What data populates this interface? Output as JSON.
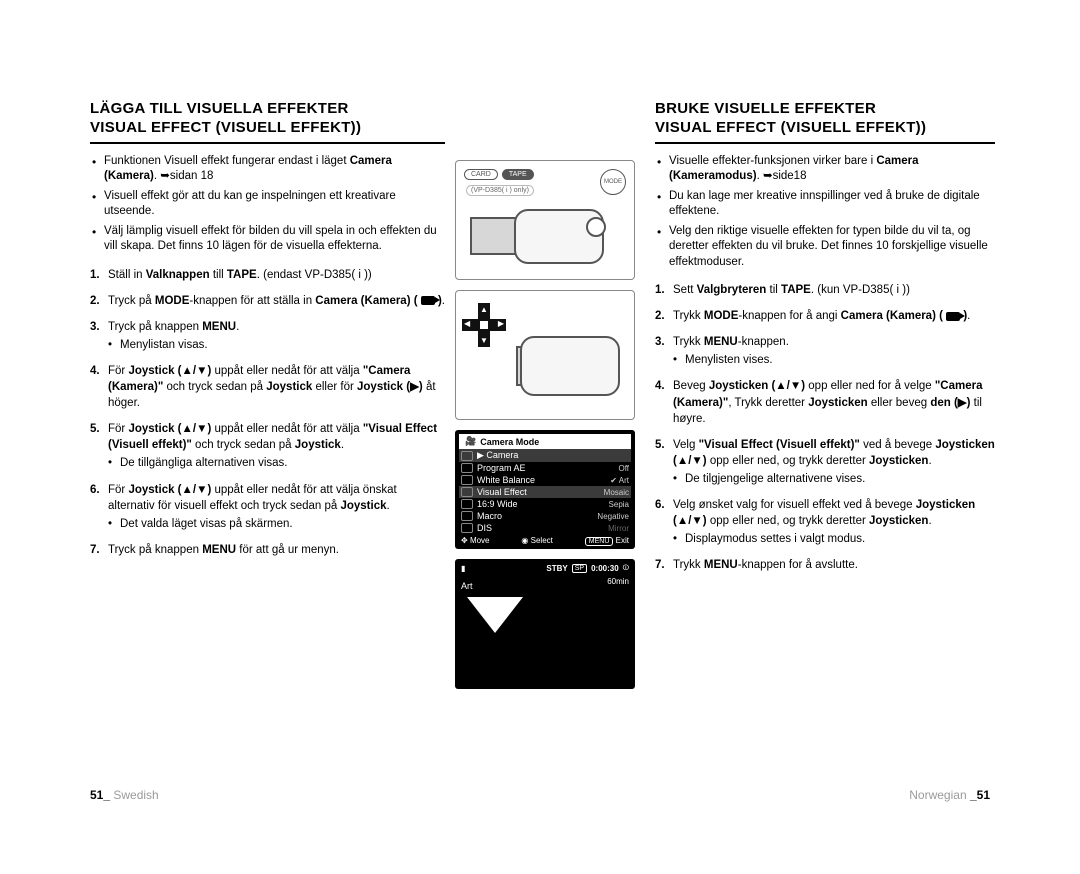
{
  "left": {
    "title_line1": "LÄGGA TILL VISUELLA EFFEKTER",
    "title_line2": "VISUAL EFFECT (VISUELL EFFEKT))",
    "intro": [
      "Funktionen Visuell effekt fungerar endast i läget <b>Camera (Kamera)</b>. ➥sidan 18",
      "Visuell effekt gör att du kan ge inspelningen ett kreativare utseende.",
      "Välj lämplig visuell effekt för bilden du vill spela in och effekten du vill skapa. Det finns 10 lägen för de visuella effekterna."
    ],
    "steps": [
      "Ställ in <b>Valknappen</b> till <b>TAPE</b>. (endast VP-D385( i ))",
      "Tryck på <b>MODE</b>-knappen för att ställa in <b>Camera (Kamera) ( <cam> )</b>.",
      "Tryck på knappen <b>MENU</b>.|Menylistan visas.",
      "För <b>Joystick (▲/▼)</b> uppåt eller nedåt för att välja <b>\"Camera (Kamera)\"</b> och tryck sedan på <b>Joystick</b> eller för <b>Joystick (▶)</b> åt höger.",
      "För <b>Joystick (▲/▼)</b> uppåt eller nedåt för att välja <b>\"Visual Effect (Visuell effekt)\"</b> och tryck sedan på <b>Joystick</b>.|De tillgängliga alternativen visas.",
      "För <b>Joystick (▲/▼)</b> uppåt eller nedåt för att välja önskat alternativ för visuell effekt och tryck sedan på <b>Joystick</b>.|Det valda läget visas på skärmen.",
      "Tryck på knappen <b>MENU</b> för att gå ur menyn."
    ]
  },
  "right": {
    "title_line1": "BRUKE VISUELLE EFFEKTER",
    "title_line2": "VISUAL EFFECT (VISUELL EFFEKT))",
    "intro": [
      "Visuelle effekter-funksjonen virker bare i <b>Camera (Kameramodus)</b>. ➥side18",
      "Du kan lage mer kreative innspillinger ved å bruke de digitale effektene.",
      "Velg den riktige visuelle effekten for typen bilde du vil ta, og deretter effekten du vil bruke. Det finnes 10 forskjellige visuelle effektmoduser."
    ],
    "steps": [
      "Sett <b>Valgbryteren</b> til <b>TAPE</b>. (kun VP-D385( i ))",
      "Trykk <b>MODE</b>-knappen for å angi <b>Camera (Kamera) ( <cam> )</b>.",
      "Trykk <b>MENU</b>-knappen.|Menylisten vises.",
      "Beveg <b>Joysticken (▲/▼)</b> opp eller ned for å velge <b>\"Camera (Kamera)\"</b>, Trykk deretter <b>Joysticken</b> eller beveg <b>den (▶)</b> til høyre.",
      "Velg <b>\"Visual Effect (Visuell effekt)\"</b> ved å bevege <b>Joysticken (▲/▼)</b> opp eller ned, og trykk deretter <b>Joysticken</b>.|De tilgjengelige alternativene vises.",
      "Velg ønsket valg for visuell effekt ved å bevege <b>Joysticken (▲/▼)</b> opp eller ned, og trykk deretter <b>Joysticken</b>.|Displaymodus settes i valgt modus.",
      "Trykk <b>MENU</b>-knappen for å avslutte."
    ]
  },
  "center": {
    "pill_card": "CARD",
    "pill_tape": "TAPE",
    "mode": "MODE",
    "subnote": "(VP-D385( i ) only)",
    "menu_header": "Camera Mode",
    "menu_rows": [
      {
        "label": "Camera",
        "value": "",
        "sel": true,
        "camera": true
      },
      {
        "label": "Program AE",
        "value": "Off"
      },
      {
        "label": "White Balance",
        "value": "Art",
        "chk": true
      },
      {
        "label": "Visual Effect",
        "value": "Mosaic",
        "sel": true
      },
      {
        "label": "16:9 Wide",
        "value": "Sepia"
      },
      {
        "label": "Macro",
        "value": "Negative"
      },
      {
        "label": "DIS",
        "value": "Mirror",
        "dim": true
      }
    ],
    "foot_move": "Move",
    "foot_select": "Select",
    "foot_menu": "MENU",
    "foot_exit": "Exit",
    "art_stby": "STBY",
    "art_sp": "SP",
    "art_time": "0:00:30",
    "art_min": "60min",
    "art_label": "Art"
  },
  "footer": {
    "left_page": "51_",
    "left_lang": "Swedish",
    "right_lang": "Norwegian",
    "right_page": "_51"
  }
}
